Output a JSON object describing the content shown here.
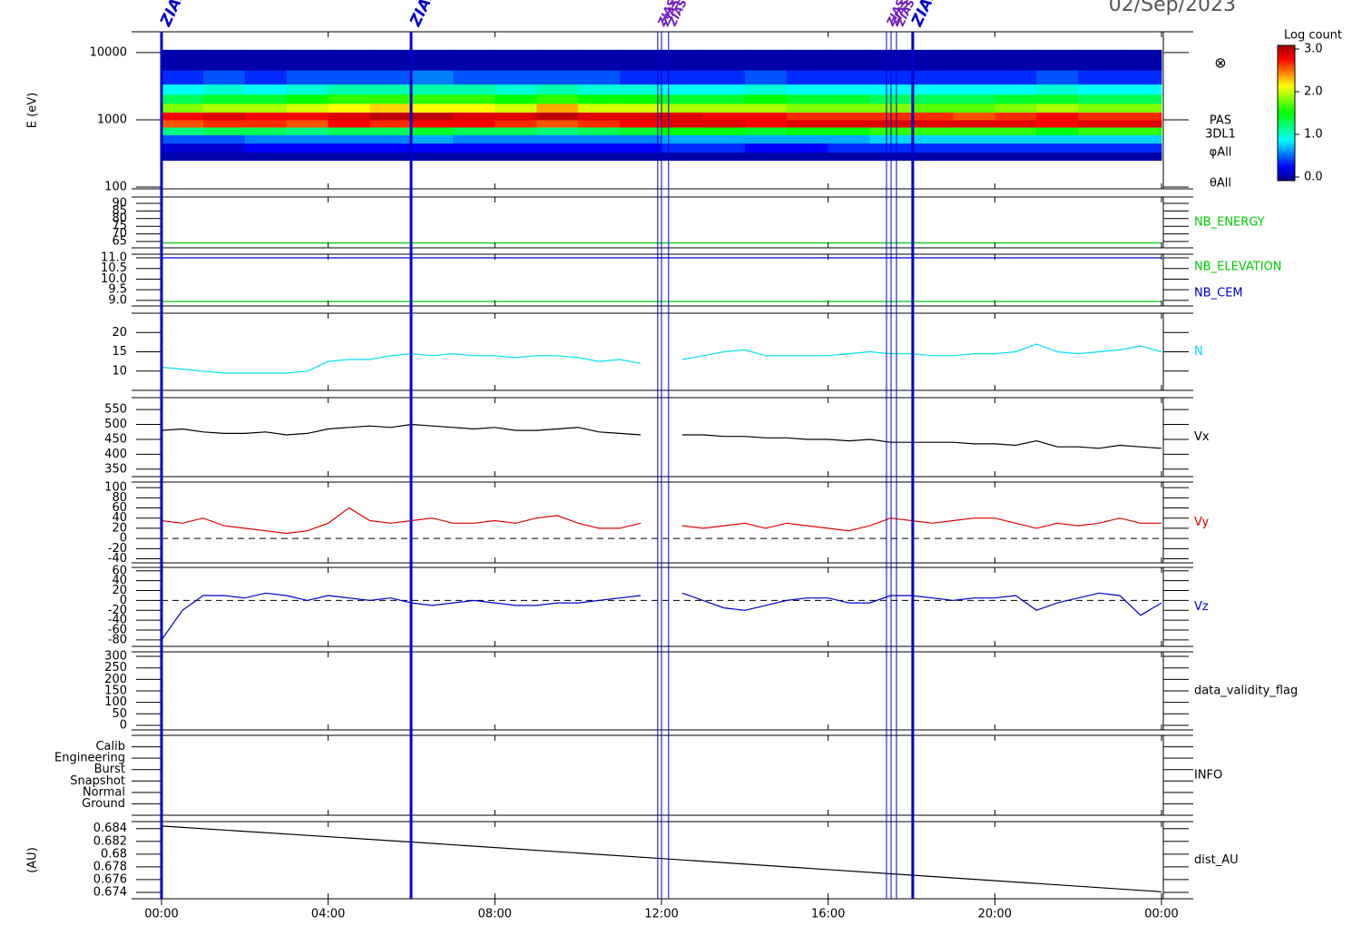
{
  "title": "02/Sep/2023",
  "events": [
    {
      "x": 0,
      "label": "ZIAS",
      "thick": true
    },
    {
      "x": 5.99,
      "label": "ZIAS",
      "thick": true
    },
    {
      "x": 11.91,
      "label": "ZIAS",
      "thick": false
    },
    {
      "x": 12.0,
      "label": "ZIAS",
      "thick": false
    },
    {
      "x": 12.17,
      "label": "ZIAS",
      "thick": false
    },
    {
      "x": 17.4,
      "label": "ZIAS",
      "thick": false
    },
    {
      "x": 17.51,
      "label": "ZIAS",
      "thick": false
    },
    {
      "x": 17.64,
      "label": "ZIAS",
      "thick": false
    },
    {
      "x": 18.03,
      "label": "ZIAS",
      "thick": true
    }
  ],
  "chart_data": [
    {
      "type": "spectrogram",
      "ylabel": "E (eV)",
      "log": true,
      "xlim": [
        0,
        24
      ],
      "ylim": [
        94,
        20400
      ],
      "yticks": [
        100,
        1000,
        10000
      ],
      "labels": [
        "PAS",
        "3DL1",
        "φAll",
        "θAll"
      ],
      "x_bins": [
        0,
        1,
        2,
        3,
        4,
        5,
        6,
        7,
        8,
        9,
        10,
        11,
        12,
        13,
        14,
        15,
        16,
        17,
        18,
        19,
        20,
        21,
        22,
        23,
        24
      ],
      "y_bins": [
        250,
        330,
        450,
        600,
        780,
        1000,
        1300,
        1750,
        2400,
        3400,
        5500,
        11000
      ],
      "values": [
        [
          0.1,
          0.2,
          0.5,
          1.2,
          2.5,
          2.7,
          1.8,
          1.3,
          0.9,
          0.4,
          0.1
        ],
        [
          0.1,
          0.2,
          0.5,
          1.3,
          2.6,
          2.8,
          1.9,
          1.4,
          1.0,
          0.5,
          0.1
        ],
        [
          0.1,
          0.3,
          0.6,
          1.3,
          2.6,
          2.7,
          1.9,
          1.4,
          0.9,
          0.4,
          0.1
        ],
        [
          0.1,
          0.3,
          0.6,
          1.2,
          2.5,
          2.7,
          2.0,
          1.5,
          1.0,
          0.5,
          0.1
        ],
        [
          0.1,
          0.3,
          0.6,
          1.3,
          2.7,
          2.8,
          2.1,
          1.6,
          1.1,
          0.5,
          0.1
        ],
        [
          0.1,
          0.3,
          0.6,
          1.3,
          2.6,
          2.9,
          2.2,
          1.6,
          1.1,
          0.5,
          0.1
        ],
        [
          0.1,
          0.3,
          0.7,
          1.4,
          2.7,
          2.9,
          2.1,
          1.6,
          1.1,
          0.6,
          0.1
        ],
        [
          0.1,
          0.3,
          0.6,
          1.3,
          2.7,
          2.8,
          2.1,
          1.6,
          1.1,
          0.5,
          0.1
        ],
        [
          0.1,
          0.3,
          0.6,
          1.3,
          2.6,
          2.8,
          2.0,
          1.5,
          1.0,
          0.5,
          0.1
        ],
        [
          0.1,
          0.3,
          0.6,
          1.2,
          2.5,
          2.9,
          2.3,
          1.6,
          1.1,
          0.5,
          0.1
        ],
        [
          0.1,
          0.3,
          0.6,
          1.3,
          2.6,
          2.8,
          2.0,
          1.5,
          1.0,
          0.5,
          0.1
        ],
        [
          0.1,
          0.3,
          0.6,
          1.4,
          2.7,
          2.8,
          2.0,
          1.5,
          1.0,
          0.4,
          0.1
        ],
        [
          0.1,
          0.4,
          0.7,
          1.5,
          2.8,
          2.8,
          1.9,
          1.4,
          0.9,
          0.4,
          0.1
        ],
        [
          0.1,
          0.4,
          0.7,
          1.5,
          2.8,
          2.7,
          1.9,
          1.4,
          0.9,
          0.4,
          0.1
        ],
        [
          0.1,
          0.3,
          0.7,
          1.4,
          2.7,
          2.7,
          1.9,
          1.5,
          1.0,
          0.5,
          0.1
        ],
        [
          0.1,
          0.3,
          0.7,
          1.5,
          2.8,
          2.6,
          1.8,
          1.4,
          0.9,
          0.4,
          0.1
        ],
        [
          0.1,
          0.4,
          0.7,
          1.5,
          2.8,
          2.6,
          1.8,
          1.4,
          0.9,
          0.4,
          0.1
        ],
        [
          0.1,
          0.4,
          0.8,
          1.6,
          2.8,
          2.6,
          1.8,
          1.3,
          0.9,
          0.4,
          0.1
        ],
        [
          0.1,
          0.4,
          0.8,
          1.6,
          2.8,
          2.6,
          1.7,
          1.3,
          0.9,
          0.4,
          0.1
        ],
        [
          0.1,
          0.4,
          0.8,
          1.6,
          2.8,
          2.5,
          1.7,
          1.3,
          0.9,
          0.4,
          0.1
        ],
        [
          0.1,
          0.4,
          0.8,
          1.6,
          2.8,
          2.6,
          1.8,
          1.4,
          0.9,
          0.4,
          0.1
        ],
        [
          0.1,
          0.4,
          0.8,
          1.5,
          2.7,
          2.7,
          1.9,
          1.4,
          1.0,
          0.5,
          0.1
        ],
        [
          0.1,
          0.4,
          0.8,
          1.6,
          2.8,
          2.6,
          1.8,
          1.3,
          0.9,
          0.4,
          0.1
        ],
        [
          0.1,
          0.4,
          0.8,
          1.6,
          2.8,
          2.6,
          1.8,
          1.3,
          0.9,
          0.4,
          0.1
        ]
      ],
      "colorbar": {
        "title": "Log count",
        "lim": [
          0,
          3
        ],
        "ticks": [
          {
            "value": 0,
            "label": "0.0"
          },
          {
            "value": 1,
            "label": "1.0"
          },
          {
            "value": 2,
            "label": "2.0"
          },
          {
            "value": 3,
            "label": "3.0"
          }
        ],
        "colors": [
          "#000080",
          "#0000ff",
          "#0080ff",
          "#00ffff",
          "#00ff80",
          "#00ff00",
          "#80ff00",
          "#ffff00",
          "#ff8000",
          "#ff0000",
          "#a00000"
        ]
      }
    },
    {
      "type": "line",
      "xlim": [
        0,
        24
      ],
      "ylim": [
        60.8,
        94.2
      ],
      "yticks": [
        65,
        70,
        75,
        80,
        85,
        90
      ],
      "x": [
        0,
        24
      ],
      "series": [
        {
          "name": "NB_ENERGY",
          "color": "#00cc00",
          "values": [
            64,
            64
          ]
        }
      ]
    },
    {
      "type": "line",
      "xlim": [
        0,
        24
      ],
      "ylim": [
        8.74,
        11.17
      ],
      "yticks": [
        {
          "value": 9,
          "label": "9.0"
        },
        9.5,
        {
          "value": 10,
          "label": "10.0"
        },
        10.5,
        {
          "value": 11,
          "label": "11.0"
        }
      ],
      "x": [
        0,
        24
      ],
      "series": [
        {
          "name": "NB_ELEVATION",
          "color": "#00cc00",
          "values": [
            8.95,
            8.95
          ]
        },
        {
          "name": "NB_CEM",
          "color": "#0000cc",
          "values": [
            11,
            11
          ]
        }
      ]
    },
    {
      "type": "line",
      "xlim": [
        0,
        24
      ],
      "ylim": [
        5,
        25
      ],
      "yticks": [
        10,
        15,
        20
      ],
      "x": [
        0,
        0.5,
        1,
        1.5,
        2,
        2.5,
        3,
        3.5,
        4,
        4.5,
        5,
        5.5,
        6,
        6.5,
        7,
        7.5,
        8,
        8.5,
        9,
        9.5,
        10,
        10.5,
        11,
        11.5,
        12,
        12.5,
        13,
        13.5,
        14,
        14.5,
        15,
        15.5,
        16,
        16.5,
        17,
        17.5,
        18,
        18.5,
        19,
        19.5,
        20,
        20.5,
        21,
        21.5,
        22,
        22.5,
        23,
        23.5,
        24
      ],
      "series": [
        {
          "name": "N",
          "color": "#00e0f0",
          "values": [
            11,
            10.5,
            10,
            9.5,
            9.5,
            9.5,
            9.5,
            10,
            12.5,
            13,
            13,
            14,
            14.5,
            14,
            14.5,
            14,
            14,
            13.5,
            14,
            14,
            13.5,
            12.5,
            13,
            12,
            null,
            13,
            14,
            15,
            15.5,
            14,
            14,
            14,
            14,
            14.5,
            15,
            14.5,
            14.5,
            14,
            14,
            14.5,
            14.5,
            15,
            17,
            15,
            14.5,
            15,
            15.5,
            16.5,
            15
          ]
        }
      ]
    },
    {
      "type": "line",
      "xlim": [
        0,
        24
      ],
      "ylim": [
        325,
        590
      ],
      "yticks": [
        350,
        400,
        450,
        500,
        550
      ],
      "x": [
        0,
        0.5,
        1,
        1.5,
        2,
        2.5,
        3,
        3.5,
        4,
        4.5,
        5,
        5.5,
        6,
        6.5,
        7,
        7.5,
        8,
        8.5,
        9,
        9.5,
        10,
        10.5,
        11,
        11.5,
        12,
        12.5,
        13,
        13.5,
        14,
        14.5,
        15,
        15.5,
        16,
        16.5,
        17,
        17.5,
        18,
        18.5,
        19,
        19.5,
        20,
        20.5,
        21,
        21.5,
        22,
        22.5,
        23,
        23.5,
        24
      ],
      "series": [
        {
          "name": "Vx",
          "color": "#000000",
          "values": [
            480,
            485,
            475,
            470,
            470,
            475,
            465,
            470,
            485,
            490,
            495,
            490,
            500,
            495,
            490,
            485,
            490,
            480,
            480,
            485,
            490,
            475,
            470,
            465,
            null,
            465,
            465,
            460,
            460,
            455,
            455,
            450,
            450,
            445,
            450,
            440,
            440,
            440,
            440,
            435,
            435,
            430,
            445,
            425,
            425,
            420,
            430,
            425,
            420
          ]
        }
      ]
    },
    {
      "type": "line",
      "xlim": [
        0,
        24
      ],
      "ylim": [
        -48,
        111
      ],
      "zero_line": true,
      "yticks": [
        -40,
        -20,
        0,
        20,
        40,
        60,
        80,
        100
      ],
      "x": [
        0,
        0.5,
        1,
        1.5,
        2,
        2.5,
        3,
        3.5,
        4,
        4.5,
        5,
        5.5,
        6,
        6.5,
        7,
        7.5,
        8,
        8.5,
        9,
        9.5,
        10,
        10.5,
        11,
        11.5,
        12,
        12.5,
        13,
        13.5,
        14,
        14.5,
        15,
        15.5,
        16,
        16.5,
        17,
        17.5,
        18,
        18.5,
        19,
        19.5,
        20,
        20.5,
        21,
        21.5,
        22,
        22.5,
        23,
        23.5,
        24
      ],
      "series": [
        {
          "name": "Vy",
          "color": "#e00000",
          "values": [
            35,
            30,
            40,
            25,
            20,
            15,
            10,
            15,
            30,
            60,
            35,
            30,
            35,
            40,
            30,
            30,
            35,
            30,
            40,
            45,
            30,
            20,
            20,
            30,
            null,
            25,
            20,
            25,
            30,
            20,
            30,
            25,
            20,
            15,
            25,
            40,
            35,
            30,
            35,
            40,
            40,
            30,
            20,
            30,
            25,
            30,
            40,
            30,
            30
          ]
        }
      ]
    },
    {
      "type": "line",
      "xlim": [
        0,
        24
      ],
      "ylim": [
        -93,
        67
      ],
      "zero_line": true,
      "yticks": [
        -80,
        -60,
        -40,
        -20,
        0,
        20,
        40,
        60
      ],
      "x": [
        0,
        0.5,
        1,
        1.5,
        2,
        2.5,
        3,
        3.5,
        4,
        4.5,
        5,
        5.5,
        6,
        6.5,
        7,
        7.5,
        8,
        8.5,
        9,
        9.5,
        10,
        10.5,
        11,
        11.5,
        12,
        12.5,
        13,
        13.5,
        14,
        14.5,
        15,
        15.5,
        16,
        16.5,
        17,
        17.5,
        18,
        18.5,
        19,
        19.5,
        20,
        20.5,
        21,
        21.5,
        22,
        22.5,
        23,
        23.5,
        24
      ],
      "series": [
        {
          "name": "Vz",
          "color": "#0000cc",
          "values": [
            -80,
            -20,
            10,
            10,
            5,
            15,
            10,
            0,
            10,
            5,
            0,
            5,
            -5,
            -10,
            -5,
            0,
            -5,
            -10,
            -10,
            -5,
            -5,
            0,
            5,
            10,
            null,
            15,
            0,
            -15,
            -20,
            -10,
            0,
            5,
            5,
            -5,
            -5,
            10,
            10,
            5,
            0,
            5,
            5,
            10,
            -20,
            -5,
            5,
            15,
            10,
            -30,
            -5
          ]
        }
      ]
    },
    {
      "type": "line",
      "xlim": [
        0,
        24
      ],
      "ylim": [
        -20,
        320
      ],
      "yticks": [
        0,
        50,
        100,
        150,
        200,
        250,
        300
      ],
      "label": "data_validity_flag"
    },
    {
      "type": "category-axis",
      "xlim": [
        0,
        24
      ],
      "label": "INFO",
      "ycategories": [
        "Calib",
        "Engineering",
        "Burst",
        "Snapshot",
        "Normal",
        "Ground"
      ]
    },
    {
      "type": "line",
      "xlim": [
        0,
        24
      ],
      "ylabel": "(AU)",
      "ylim": [
        0.673,
        0.6851
      ],
      "yticks": [
        0.674,
        0.676,
        0.678,
        0.68,
        0.682,
        0.684
      ],
      "xticks": [
        {
          "value": 0,
          "label": "00:00"
        },
        {
          "value": 4,
          "label": "04:00"
        },
        {
          "value": 8,
          "label": "08:00"
        },
        {
          "value": 12,
          "label": "12:00"
        },
        {
          "value": 16,
          "label": "16:00"
        },
        {
          "value": 20,
          "label": "20:00"
        },
        {
          "value": 24,
          "label": "00:00"
        }
      ],
      "x": [
        0,
        6,
        12,
        18,
        24
      ],
      "series": [
        {
          "name": "dist_AU",
          "color": "#000000",
          "values": [
            0.6844,
            0.6819,
            0.6793,
            0.6767,
            0.6741
          ]
        }
      ]
    }
  ]
}
